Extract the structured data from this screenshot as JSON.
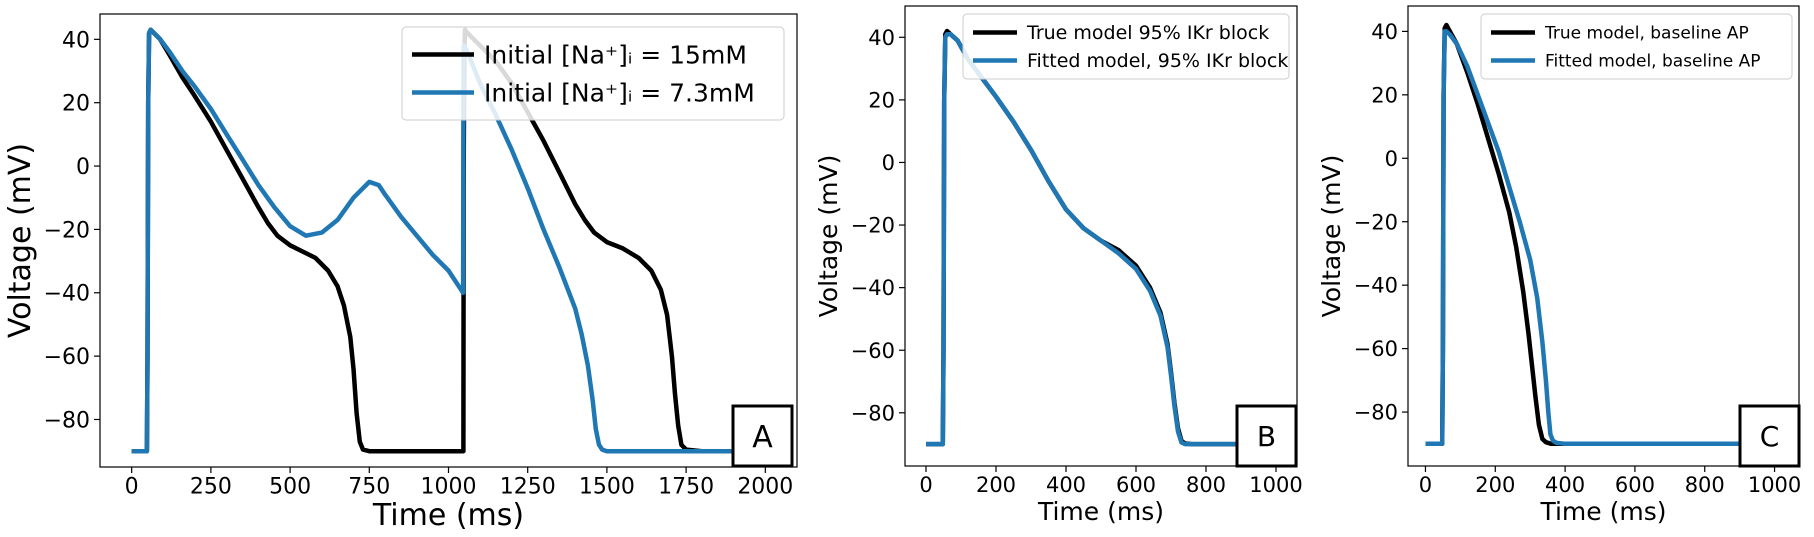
{
  "chart_data": [
    {
      "type": "line",
      "panel_label": "A",
      "xlabel": "Time (ms)",
      "ylabel": "Voltage (mV)",
      "xlim": [
        -100,
        2100
      ],
      "ylim": [
        -95,
        48
      ],
      "xticks": [
        0,
        250,
        500,
        750,
        1000,
        1250,
        1500,
        1750,
        2000
      ],
      "yticks": [
        -80,
        -60,
        -40,
        -20,
        0,
        20,
        40
      ],
      "xtick_labels": [
        "0",
        "250",
        "500",
        "750",
        "1000",
        "1250",
        "1500",
        "1750",
        "2000"
      ],
      "ytick_labels": [
        "−80",
        "−60",
        "−40",
        "−20",
        "0",
        "20",
        "40"
      ],
      "legend_position": "top-right",
      "series": [
        {
          "name": "Initial [Na⁺]ᵢ = 15mM",
          "color": "#000000",
          "x": [
            0,
            48,
            50,
            52,
            55,
            60,
            70,
            90,
            120,
            160,
            200,
            250,
            300,
            350,
            400,
            430,
            460,
            500,
            540,
            580,
            620,
            650,
            670,
            690,
            700,
            710,
            720,
            730,
            750,
            800,
            900,
            1000,
            1047,
            1048,
            1050,
            1052,
            1060,
            1080,
            1110,
            1150,
            1200,
            1250,
            1300,
            1350,
            1400,
            1430,
            1460,
            1500,
            1550,
            1600,
            1640,
            1670,
            1690,
            1705,
            1715,
            1725,
            1735,
            1750,
            1800,
            1900
          ],
          "y": [
            -90,
            -90,
            -60,
            20,
            42,
            43,
            42,
            40,
            35,
            28,
            22,
            14,
            5,
            -4,
            -13,
            -18,
            -22,
            -25,
            -27,
            -29,
            -33,
            -38,
            -44,
            -54,
            -64,
            -78,
            -87,
            -89.5,
            -90,
            -90,
            -90,
            -90,
            -90,
            0,
            35,
            43,
            42,
            40,
            37,
            33,
            26,
            17,
            8,
            -2,
            -12,
            -17,
            -21,
            -24,
            -26,
            -29,
            -33,
            -39,
            -47,
            -60,
            -72,
            -82,
            -88,
            -89.5,
            -90,
            -90
          ]
        },
        {
          "name": "Initial [Na⁺]ᵢ = 7.3mM",
          "color": "#1f77b4",
          "x": [
            0,
            48,
            50,
            52,
            55,
            60,
            70,
            90,
            120,
            160,
            200,
            250,
            300,
            350,
            400,
            450,
            500,
            550,
            600,
            650,
            700,
            750,
            780,
            800,
            850,
            900,
            950,
            1000,
            1046,
            1047,
            1048,
            1050,
            1060,
            1080,
            1100,
            1150,
            1200,
            1250,
            1300,
            1350,
            1400,
            1420,
            1440,
            1455,
            1465,
            1475,
            1485,
            1500,
            1550,
            1600,
            1700,
            1800,
            1900
          ],
          "y": [
            -90,
            -90,
            -60,
            20,
            42,
            43,
            42,
            40,
            36,
            30,
            25,
            18,
            10,
            2,
            -6,
            -13,
            -19,
            -22,
            -21,
            -17,
            -10,
            -5,
            -6,
            -9,
            -16,
            -22,
            -28,
            -33,
            -40,
            20,
            38,
            38,
            36,
            31,
            26,
            16,
            5,
            -7,
            -20,
            -32,
            -45,
            -53,
            -63,
            -74,
            -83,
            -88,
            -89.5,
            -90,
            -90,
            -90,
            -90,
            -90,
            -90
          ]
        }
      ]
    },
    {
      "type": "line",
      "panel_label": "B",
      "xlabel": "Time (ms)",
      "ylabel": "Voltage (mV)",
      "xlim": [
        -60,
        1060
      ],
      "ylim": [
        -97,
        50
      ],
      "xticks": [
        0,
        200,
        400,
        600,
        800,
        1000
      ],
      "yticks": [
        -80,
        -60,
        -40,
        -20,
        0,
        20,
        40
      ],
      "xtick_labels": [
        "0",
        "200",
        "400",
        "600",
        "800",
        "1000"
      ],
      "ytick_labels": [
        "−80",
        "−60",
        "−40",
        "−20",
        "0",
        "20",
        "40"
      ],
      "legend_position": "top-right",
      "series": [
        {
          "name": "True model 95% IKr block",
          "color": "#000000",
          "x": [
            0,
            48,
            50,
            52,
            55,
            60,
            70,
            90,
            120,
            160,
            200,
            250,
            300,
            350,
            400,
            450,
            500,
            550,
            600,
            640,
            670,
            690,
            700,
            710,
            720,
            730,
            740,
            760,
            800,
            900
          ],
          "y": [
            -90,
            -90,
            -60,
            20,
            41,
            42,
            41,
            39,
            33,
            27,
            21,
            13,
            4,
            -6,
            -15,
            -21,
            -25,
            -28,
            -33,
            -40,
            -48,
            -58,
            -67,
            -77,
            -85,
            -89,
            -89.8,
            -90,
            -90,
            -90
          ]
        },
        {
          "name": "Fitted model, 95% IKr block",
          "color": "#1f77b4",
          "x": [
            0,
            48,
            50,
            52,
            55,
            60,
            70,
            90,
            120,
            160,
            200,
            250,
            300,
            350,
            400,
            450,
            500,
            550,
            600,
            640,
            670,
            690,
            700,
            710,
            720,
            730,
            740,
            760,
            800,
            900
          ],
          "y": [
            -90,
            -90,
            -60,
            20,
            40,
            41,
            41,
            39,
            33,
            27,
            21,
            13,
            4,
            -6,
            -15,
            -21,
            -25,
            -29,
            -34,
            -41,
            -49,
            -59,
            -68,
            -78,
            -86,
            -89.5,
            -90,
            -90,
            -90,
            -90
          ]
        }
      ]
    },
    {
      "type": "line",
      "panel_label": "C",
      "xlabel": "Time (ms)",
      "ylabel": "Voltage (mV)",
      "xlim": [
        -50,
        1070
      ],
      "ylim": [
        -97,
        48
      ],
      "xticks": [
        0,
        200,
        400,
        600,
        800,
        1000
      ],
      "yticks": [
        -80,
        -60,
        -40,
        -20,
        0,
        20,
        40
      ],
      "xtick_labels": [
        "0",
        "200",
        "400",
        "600",
        "800",
        "1000"
      ],
      "ytick_labels": [
        "−80",
        "−60",
        "−40",
        "−20",
        "0",
        "20",
        "40"
      ],
      "legend_position": "top-right",
      "series": [
        {
          "name": "True model, baseline AP",
          "color": "#000000",
          "x": [
            0,
            48,
            50,
            52,
            55,
            60,
            70,
            90,
            120,
            150,
            180,
            210,
            240,
            260,
            280,
            295,
            305,
            315,
            325,
            335,
            345,
            360,
            400,
            500,
            900
          ],
          "y": [
            -90,
            -90,
            -60,
            20,
            41,
            42,
            40,
            36,
            27,
            17,
            6,
            -5,
            -17,
            -28,
            -42,
            -55,
            -65,
            -75,
            -84,
            -88.5,
            -89.5,
            -90,
            -90,
            -90,
            -90
          ]
        },
        {
          "name": "Fitted model, baseline AP",
          "color": "#1f77b4",
          "x": [
            0,
            48,
            50,
            52,
            55,
            60,
            70,
            90,
            120,
            150,
            180,
            210,
            240,
            270,
            300,
            320,
            335,
            345,
            352,
            358,
            365,
            375,
            400,
            500,
            900
          ],
          "y": [
            -90,
            -90,
            -60,
            20,
            40,
            40,
            39,
            36,
            29,
            20,
            11,
            2,
            -9,
            -20,
            -32,
            -44,
            -58,
            -70,
            -80,
            -87,
            -89,
            -89.7,
            -90,
            -90,
            -90
          ]
        }
      ]
    }
  ]
}
